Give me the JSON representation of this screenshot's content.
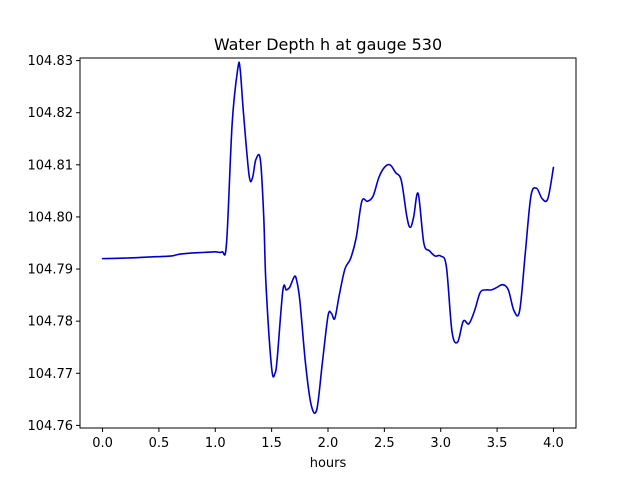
{
  "chart_data": {
    "type": "line",
    "title": "Water Depth h at gauge 530",
    "xlabel": "hours",
    "ylabel": "",
    "xlim": [
      -0.2,
      4.2
    ],
    "ylim": [
      104.7595,
      104.8305
    ],
    "grid": false,
    "xticks": [
      0.0,
      0.5,
      1.0,
      1.5,
      2.0,
      2.5,
      3.0,
      3.5,
      4.0
    ],
    "xtick_labels": [
      "0.0",
      "0.5",
      "1.0",
      "1.5",
      "2.0",
      "2.5",
      "3.0",
      "3.5",
      "4.0"
    ],
    "yticks": [
      104.76,
      104.77,
      104.78,
      104.79,
      104.8,
      104.81,
      104.82,
      104.83
    ],
    "ytick_labels": [
      "104.76",
      "104.77",
      "104.78",
      "104.79",
      "104.80",
      "104.81",
      "104.82",
      "104.83"
    ],
    "colors": {
      "line": "#0000cc",
      "axes": "#000000",
      "background": "#ffffff"
    },
    "series": [
      {
        "x": [
          0.0,
          0.2,
          0.4,
          0.6,
          0.65,
          0.7,
          0.8,
          0.9,
          1.0,
          1.06,
          1.1,
          1.15,
          1.2,
          1.22,
          1.25,
          1.3,
          1.33,
          1.36,
          1.4,
          1.43,
          1.45,
          1.5,
          1.53,
          1.55,
          1.6,
          1.63,
          1.66,
          1.7,
          1.72,
          1.75,
          1.8,
          1.85,
          1.9,
          1.95,
          2.0,
          2.03,
          2.06,
          2.1,
          2.15,
          2.2,
          2.25,
          2.3,
          2.35,
          2.4,
          2.45,
          2.5,
          2.55,
          2.6,
          2.65,
          2.7,
          2.73,
          2.76,
          2.8,
          2.85,
          2.9,
          2.95,
          3.0,
          3.05,
          3.1,
          3.15,
          3.2,
          3.25,
          3.3,
          3.35,
          3.4,
          3.45,
          3.5,
          3.55,
          3.6,
          3.65,
          3.7,
          3.75,
          3.8,
          3.85,
          3.9,
          3.95,
          4.0
        ],
        "y": [
          104.792,
          104.7921,
          104.7923,
          104.7925,
          104.7927,
          104.7929,
          104.7931,
          104.7932,
          104.7933,
          104.7933,
          104.795,
          104.818,
          104.8285,
          104.8285,
          104.82,
          104.808,
          104.8075,
          104.811,
          104.811,
          104.8,
          104.787,
          104.771,
          104.77,
          104.773,
          104.786,
          104.786,
          104.7865,
          104.7885,
          104.788,
          104.784,
          104.772,
          104.764,
          104.763,
          104.772,
          104.781,
          104.7815,
          104.7805,
          104.785,
          104.79,
          104.792,
          104.796,
          104.803,
          104.803,
          104.804,
          104.8075,
          104.8095,
          104.81,
          104.8085,
          104.807,
          104.8,
          104.798,
          104.8,
          104.8045,
          104.795,
          104.7935,
          104.7925,
          104.7925,
          104.7905,
          104.778,
          104.776,
          104.78,
          104.7795,
          104.782,
          104.7855,
          104.786,
          104.786,
          104.7865,
          104.787,
          104.786,
          104.782,
          104.782,
          104.793,
          104.804,
          104.8055,
          104.8035,
          104.8035,
          104.8095
        ]
      }
    ]
  }
}
